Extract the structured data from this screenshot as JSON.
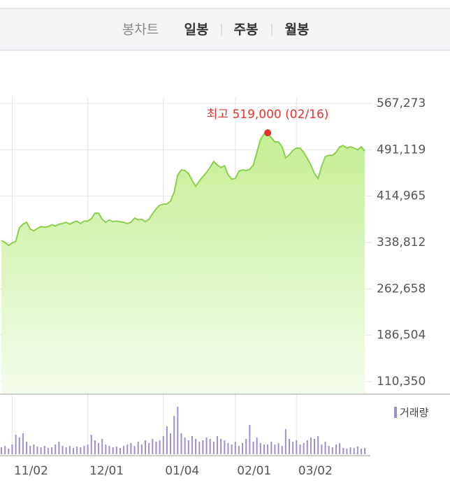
{
  "header": {
    "tabs": [
      "봉차트",
      "일봉",
      "주봉",
      "월봉"
    ]
  },
  "chart_data": {
    "type": "area",
    "max_label": "최고 519,000 (02/16)",
    "categories": [
      null,
      null,
      null,
      "11/02",
      null,
      null,
      null,
      null,
      null,
      null,
      null,
      null,
      null,
      null,
      null,
      null,
      null,
      null,
      null,
      null,
      null,
      null,
      null,
      null,
      "12/01",
      null,
      null,
      null,
      null,
      null,
      null,
      null,
      null,
      null,
      null,
      null,
      null,
      null,
      null,
      null,
      null,
      null,
      null,
      null,
      null,
      "01/04",
      null,
      null,
      null,
      null,
      null,
      null,
      null,
      null,
      null,
      null,
      null,
      null,
      null,
      null,
      null,
      null,
      null,
      null,
      null,
      "02/01",
      null,
      null,
      null,
      null,
      null,
      null,
      null,
      null,
      null,
      null,
      null,
      null,
      null,
      null,
      null,
      null,
      "03/02",
      null,
      null,
      null,
      null,
      null,
      null,
      null,
      null,
      null,
      null,
      null,
      null,
      null,
      null,
      null,
      null,
      null,
      null,
      null
    ],
    "series": [
      {
        "color": "#8ccf4d",
        "values": [
          342000,
          339000,
          334000,
          338000,
          341000,
          363000,
          369000,
          372000,
          361000,
          358000,
          362000,
          365000,
          364000,
          365000,
          368000,
          366000,
          369000,
          370000,
          372000,
          369000,
          372000,
          374000,
          370000,
          374000,
          374000,
          378000,
          387000,
          387000,
          377000,
          372000,
          376000,
          373000,
          374000,
          373000,
          372000,
          370000,
          372000,
          379000,
          376000,
          377000,
          373000,
          377000,
          386000,
          394000,
          400000,
          402000,
          402000,
          407000,
          421000,
          450000,
          458000,
          457000,
          452000,
          441000,
          431000,
          440000,
          447000,
          454000,
          462000,
          472000,
          466000,
          462000,
          465000,
          450000,
          443000,
          444000,
          456000,
          458000,
          457000,
          459000,
          466000,
          487000,
          508000,
          517000,
          519000,
          511000,
          504000,
          504000,
          496000,
          478000,
          483000,
          490000,
          494000,
          494000,
          487000,
          477000,
          466000,
          452000,
          444000,
          464000,
          480000,
          482000,
          482000,
          487000,
          496000,
          498000,
          494000,
          496000,
          494000,
          491000,
          496000,
          489000
        ]
      }
    ],
    "volume": {
      "name": "거래량",
      "color": "#a08fd0",
      "ylim": [
        0,
        72
      ],
      "values": [
        10,
        12,
        8,
        14,
        28,
        24,
        30,
        18,
        12,
        14,
        11,
        10,
        12,
        9,
        10,
        14,
        18,
        12,
        10,
        12,
        9,
        11,
        10,
        12,
        14,
        28,
        20,
        16,
        22,
        14,
        12,
        10,
        11,
        9,
        12,
        14,
        16,
        12,
        18,
        14,
        20,
        16,
        22,
        18,
        20,
        26,
        40,
        30,
        55,
        68,
        30,
        24,
        20,
        26,
        22,
        18,
        20,
        24,
        22,
        18,
        26,
        22,
        20,
        16,
        14,
        18,
        12,
        16,
        22,
        42,
        18,
        24,
        16,
        14,
        14,
        18,
        14,
        16,
        12,
        36,
        22,
        18,
        20,
        14,
        16,
        20,
        24,
        22,
        26,
        14,
        18,
        12,
        10,
        14,
        16,
        9,
        8,
        10,
        9,
        11,
        8,
        9
      ]
    },
    "ylim": [
      110350,
      567273
    ],
    "yticks": [
      {
        "value": 110350,
        "label": "110,350"
      },
      {
        "value": 186504,
        "label": "186,504"
      },
      {
        "value": 262658,
        "label": "262,658"
      },
      {
        "value": 338812,
        "label": "338,812"
      },
      {
        "value": 414965,
        "label": "414,965"
      },
      {
        "value": 491119,
        "label": "491,119"
      },
      {
        "value": 567273,
        "label": "567,273"
      }
    ],
    "grid": true,
    "max_color": "#e8322e"
  }
}
